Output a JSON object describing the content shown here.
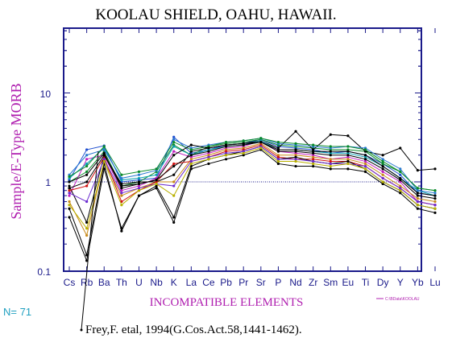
{
  "chart_data": {
    "type": "line",
    "title": "KOOLAU SHIELD, OAHU, HAWAII.",
    "ylabel": "Sample/E-Type MORB",
    "xlabel": "INCOMPATIBLE ELEMENTS",
    "yscale": "log",
    "ylim": [
      0.1,
      50
    ],
    "yticks": [
      "10",
      "1",
      "0.1"
    ],
    "reference_line": 1,
    "categories": [
      "Cs",
      "Rb",
      "Ba",
      "Th",
      "U",
      "Nb",
      "K",
      "La",
      "Ce",
      "Pb",
      "Pr",
      "Sr",
      "P",
      "Nd",
      "Zr",
      "Sm",
      "Eu",
      "Ti",
      "Dy",
      "Y",
      "Yb",
      "Lu"
    ],
    "series": [
      {
        "color": "#1f4fd0",
        "values": [
          1.05,
          2.3,
          2.55,
          1.0,
          1.05,
          1.1,
          3.2,
          2.1,
          2.3,
          2.6,
          2.7,
          3.0,
          2.5,
          2.4,
          2.3,
          2.1,
          2.2,
          2.0,
          1.6,
          1.2,
          0.75,
          0.7
        ]
      },
      {
        "color": "#0a8a2a",
        "values": [
          1.0,
          1.3,
          2.2,
          0.9,
          1.0,
          1.3,
          2.6,
          2.0,
          2.5,
          2.7,
          2.8,
          3.0,
          2.6,
          2.5,
          2.4,
          2.3,
          2.3,
          2.2,
          1.6,
          1.3,
          0.85,
          0.8
        ]
      },
      {
        "color": "#c01ec0",
        "values": [
          0.7,
          1.8,
          2.0,
          0.8,
          0.9,
          1.1,
          2.2,
          1.9,
          2.1,
          2.4,
          2.5,
          2.9,
          2.2,
          2.1,
          2.0,
          1.8,
          1.9,
          1.7,
          1.3,
          1.0,
          0.6,
          0.55
        ]
      },
      {
        "color": "#000000",
        "values": [
          0.9,
          0.35,
          2.0,
          0.95,
          1.0,
          1.0,
          1.2,
          2.2,
          2.4,
          2.6,
          2.7,
          2.9,
          2.4,
          3.7,
          2.3,
          3.4,
          3.3,
          2.2,
          2.0,
          2.4,
          1.35,
          1.4
        ]
      },
      {
        "color": "#c88a1a",
        "values": [
          0.6,
          0.25,
          1.7,
          0.7,
          0.85,
          1.0,
          1.0,
          1.8,
          2.0,
          2.3,
          2.4,
          2.7,
          2.0,
          2.0,
          1.9,
          1.8,
          1.8,
          1.6,
          1.2,
          0.9,
          0.65,
          0.6
        ]
      },
      {
        "color": "#0aa0b0",
        "values": [
          1.1,
          1.6,
          2.4,
          1.05,
          1.1,
          1.2,
          2.5,
          2.0,
          2.3,
          2.5,
          2.6,
          2.9,
          2.3,
          2.3,
          2.2,
          2.1,
          2.1,
          1.9,
          1.5,
          1.1,
          0.8,
          0.7
        ]
      },
      {
        "color": "#d01010",
        "values": [
          0.8,
          0.9,
          1.9,
          0.6,
          0.8,
          1.0,
          1.6,
          1.7,
          1.9,
          2.2,
          2.3,
          2.6,
          1.9,
          1.8,
          1.8,
          1.7,
          1.7,
          1.5,
          1.1,
          0.85,
          0.6,
          0.55
        ]
      },
      {
        "color": "#000000",
        "values": [
          0.5,
          0.15,
          1.6,
          0.28,
          0.7,
          0.9,
          0.4,
          1.5,
          1.8,
          2.0,
          2.2,
          2.5,
          1.8,
          1.9,
          1.7,
          1.6,
          1.7,
          1.4,
          1.0,
          0.8,
          0.55,
          0.5
        ]
      },
      {
        "color": "#2a7ad0",
        "values": [
          1.2,
          2.0,
          2.3,
          1.1,
          1.2,
          1.35,
          3.0,
          2.4,
          2.6,
          2.8,
          2.9,
          3.1,
          2.7,
          2.6,
          2.5,
          2.4,
          2.5,
          2.4,
          1.8,
          1.4,
          0.8,
          0.75
        ]
      },
      {
        "color": "#000000",
        "values": [
          1.0,
          1.2,
          2.1,
          0.85,
          0.95,
          1.05,
          1.5,
          2.0,
          2.2,
          2.5,
          2.6,
          2.8,
          2.2,
          2.2,
          2.1,
          2.0,
          2.0,
          1.8,
          1.4,
          1.05,
          0.7,
          0.65
        ]
      },
      {
        "color": "#6a2ad0",
        "values": [
          0.75,
          0.6,
          1.8,
          0.75,
          0.85,
          0.95,
          0.9,
          1.7,
          1.9,
          2.1,
          2.2,
          2.5,
          1.8,
          1.8,
          1.7,
          1.6,
          1.6,
          1.5,
          1.1,
          0.85,
          0.6,
          0.55
        ]
      },
      {
        "color": "#0a8a2a",
        "values": [
          1.15,
          1.5,
          2.5,
          1.2,
          1.3,
          1.4,
          2.8,
          2.3,
          2.5,
          2.8,
          2.9,
          3.1,
          2.8,
          2.7,
          2.6,
          2.5,
          2.5,
          2.3,
          1.7,
          1.3,
          0.85,
          0.8
        ]
      },
      {
        "color": "#000000",
        "values": [
          0.4,
          0.13,
          1.4,
          0.3,
          0.7,
          0.85,
          0.35,
          1.4,
          1.6,
          1.8,
          2.0,
          2.3,
          1.6,
          1.5,
          1.5,
          1.4,
          1.4,
          1.3,
          0.95,
          0.75,
          0.5,
          0.45
        ]
      },
      {
        "color": "#b8b000",
        "values": [
          0.55,
          0.3,
          1.7,
          0.55,
          0.8,
          0.95,
          0.7,
          1.6,
          1.8,
          2.0,
          2.1,
          2.4,
          1.7,
          1.7,
          1.6,
          1.5,
          1.6,
          1.4,
          1.0,
          0.8,
          0.55,
          0.5
        ]
      },
      {
        "color": "#000000",
        "values": [
          0.85,
          1.0,
          2.0,
          0.9,
          0.95,
          1.05,
          2.0,
          2.6,
          2.4,
          2.6,
          2.7,
          2.8,
          2.3,
          2.3,
          2.2,
          2.2,
          2.2,
          2.0,
          1.5,
          1.1,
          0.75,
          0.7
        ]
      }
    ],
    "n_label": "N= 71",
    "legend_note": "C:\\BData\\KOOLAU",
    "citation": "Frey,F. etal, 1994(G.Cos.Act.58,1441-1462).",
    "colors": {
      "axis": "#1a1a8a",
      "ylabel": "#b020b0",
      "xlabel": "#b020b0",
      "ticklabel": "#1a1a8a",
      "n_label": "#20a0c0",
      "reference_line": "#1a1a8a"
    }
  }
}
